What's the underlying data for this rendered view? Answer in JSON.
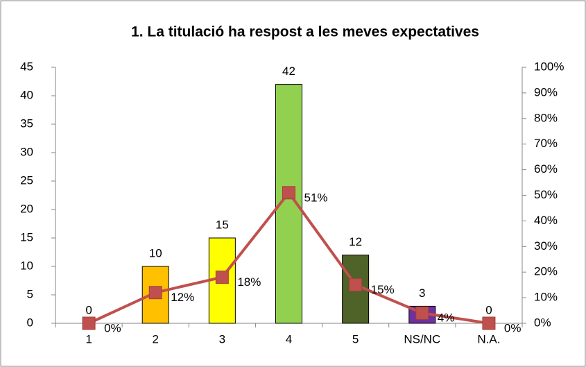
{
  "chart_data": {
    "type": "combo",
    "title": "1. La titulació ha respost a les meves expectatives",
    "categories": [
      "1",
      "2",
      "3",
      "4",
      "5",
      "NS/NC",
      "N.A."
    ],
    "series": [
      {
        "type": "bar",
        "colors": [
          "#4f81bd",
          "#ffc000",
          "#ffff00",
          "#92d050",
          "#4f6228",
          "#7030a0",
          "#c0504d"
        ],
        "values": [
          0,
          10,
          15,
          42,
          12,
          3,
          0
        ]
      },
      {
        "type": "line",
        "axis": "y2",
        "color": "#c0504d",
        "values": [
          0,
          12,
          18,
          51,
          15,
          4,
          0
        ],
        "value_labels": [
          "0%",
          "12%",
          "18%",
          "51%",
          "15%",
          "4%",
          "0%"
        ]
      }
    ],
    "ylim": [
      0,
      45
    ],
    "yticks": [
      0,
      5,
      10,
      15,
      20,
      25,
      30,
      35,
      40,
      45
    ],
    "y2lim": [
      0,
      100
    ],
    "y2ticks": [
      {
        "value": 0,
        "label": "0%"
      },
      {
        "value": 10,
        "label": "10%"
      },
      {
        "value": 20,
        "label": "20%"
      },
      {
        "value": 30,
        "label": "30%"
      },
      {
        "value": 40,
        "label": "40%"
      },
      {
        "value": 50,
        "label": "50%"
      },
      {
        "value": 60,
        "label": "60%"
      },
      {
        "value": 70,
        "label": "70%"
      },
      {
        "value": 80,
        "label": "80%"
      },
      {
        "value": 90,
        "label": "90%"
      },
      {
        "value": 100,
        "label": "100%"
      }
    ],
    "grid": false
  }
}
